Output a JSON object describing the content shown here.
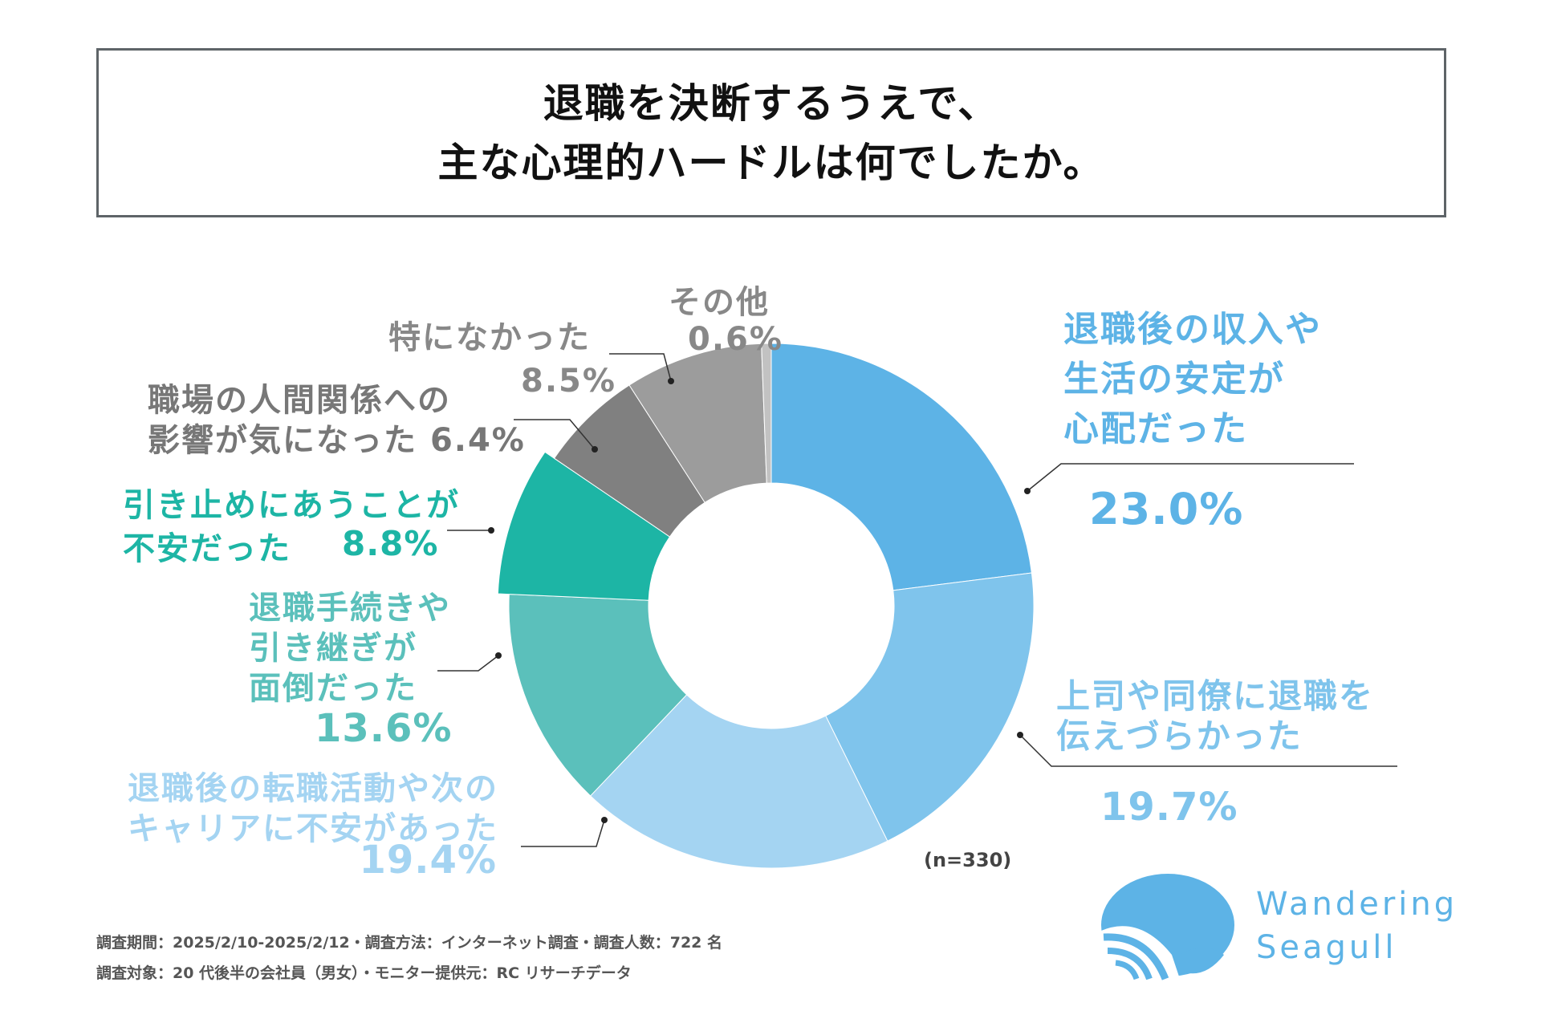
{
  "title": {
    "line1": "退職を決断するうえで、",
    "line2": "主な心理的ハードルは何でしたか。"
  },
  "chart_data": {
    "type": "pie",
    "subtype": "donut",
    "title": "退職を決断するうえで、主な心理的ハードルは何でしたか。",
    "sample": "(n=330)",
    "unit": "%",
    "slices": [
      {
        "label": "退職後の収入や生活の安定が心配だった",
        "lines": [
          "退職後の収入や",
          "生活の安定が",
          "心配だった"
        ],
        "value": 23.0,
        "pct": "23.0%",
        "color": "#5db3e6"
      },
      {
        "label": "上司や同僚に退職を伝えづらかった",
        "lines": [
          "上司や同僚に退職を",
          "伝えづらかった"
        ],
        "value": 19.7,
        "pct": "19.7%",
        "color": "#7fc4ec"
      },
      {
        "label": "退職後の転職活動や次のキャリアに不安があった",
        "lines": [
          "退職後の転職活動や次の",
          "キャリアに不安があった"
        ],
        "value": 19.4,
        "pct": "19.4%",
        "color": "#a4d4f2"
      },
      {
        "label": "退職手続きや引き継ぎが面倒だった",
        "lines": [
          "退職手続きや",
          "引き継ぎが",
          "面倒だった"
        ],
        "value": 13.6,
        "pct": "13.6%",
        "color": "#5bc0bb"
      },
      {
        "label": "引き止めにあうことが不安だった",
        "lines": [
          "引き止めにあうことが",
          "不安だった"
        ],
        "value": 8.8,
        "pct": "8.8%",
        "color": "#1db5a5"
      },
      {
        "label": "職場の人間関係への影響が気になった",
        "lines": [
          "職場の人間関係への",
          "影響が気になった"
        ],
        "value": 6.4,
        "pct": "6.4%",
        "color": "#808080"
      },
      {
        "label": "特になかった",
        "lines": [
          "特になかった"
        ],
        "value": 8.5,
        "pct": "8.5%",
        "color": "#9c9c9c"
      },
      {
        "label": "その他",
        "lines": [
          "その他"
        ],
        "value": 0.6,
        "pct": "0.6%",
        "color": "#c2c2c2"
      }
    ]
  },
  "footer": {
    "line1": "調査期間：2025/2/10-2025/2/12・調査方法：インターネット調査・調査人数：722 名",
    "line2": "調査対象：20 代後半の会社員（男女）・モニター提供元：RC リサーチデータ"
  },
  "logo": {
    "line1": "Wandering",
    "line2": "Seagull",
    "color": "#5db3e6"
  }
}
